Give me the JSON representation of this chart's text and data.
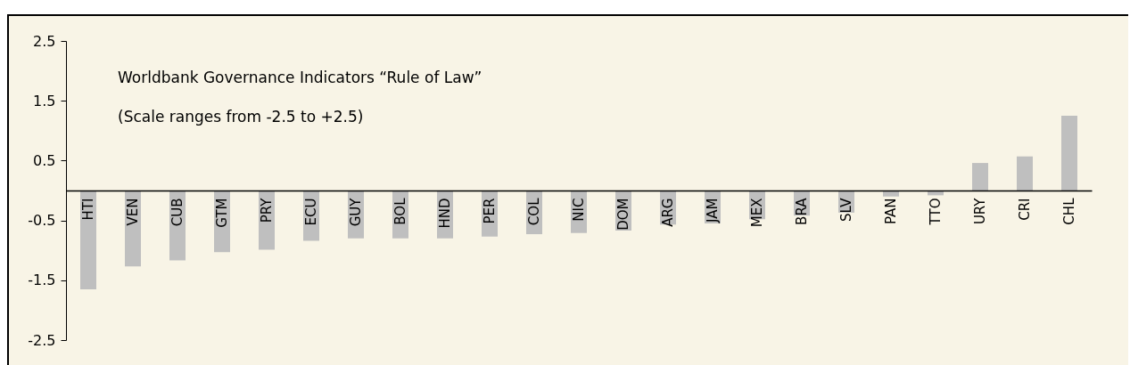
{
  "chart_data": {
    "type": "bar",
    "categories": [
      "HTI",
      "VEN",
      "CUB",
      "GTM",
      "PRY",
      "ECU",
      "GUY",
      "BOL",
      "HND",
      "PER",
      "COL",
      "NIC",
      "DOM",
      "ARG",
      "JAM",
      "MEX",
      "BRA",
      "SLV",
      "PAN",
      "TTO",
      "URY",
      "CRI",
      "CHL"
    ],
    "values": [
      -1.65,
      -1.27,
      -1.17,
      -1.03,
      -0.99,
      -0.84,
      -0.8,
      -0.8,
      -0.8,
      -0.77,
      -0.73,
      -0.71,
      -0.67,
      -0.57,
      -0.55,
      -0.48,
      -0.42,
      -0.37,
      -0.1,
      -0.08,
      0.46,
      0.57,
      1.25
    ],
    "color": "#bfbfbf",
    "ylim": [
      -2.5,
      2.5
    ],
    "yticks": [
      -2.5,
      -1.5,
      -0.5,
      0.5,
      1.5,
      2.5
    ],
    "annotations": [
      "Worldbank Governance Indicators “Rule of Law”",
      "(Scale ranges from -2.5 to +2.5)"
    ],
    "grid": false
  }
}
